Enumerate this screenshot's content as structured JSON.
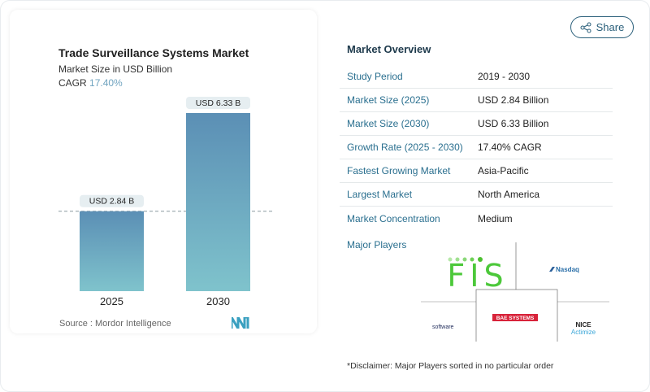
{
  "chart_data": {
    "type": "bar",
    "title": "Trade Surveillance Systems Market",
    "subtitle": "Market Size in USD Billion",
    "cagr_label": "CAGR",
    "cagr_value": "17.40%",
    "categories": [
      "2025",
      "2030"
    ],
    "values": [
      2.84,
      6.33
    ],
    "data_labels": [
      "USD 2.84 B",
      "USD 6.33 B"
    ],
    "ylim": [
      0,
      6.33
    ],
    "colors": {
      "top": "#5b8fb5",
      "bottom": "#7fc3cc"
    },
    "source": "Source :  Mordor Intelligence"
  },
  "share_label": "Share",
  "overview": {
    "title": "Market Overview",
    "rows": [
      {
        "label": "Study Period",
        "value": "2019 - 2030"
      },
      {
        "label": "Market Size (2025)",
        "value": "USD 2.84 Billion"
      },
      {
        "label": "Market Size (2030)",
        "value": "USD 6.33 Billion"
      },
      {
        "label": "Growth Rate (2025 - 2030)",
        "value": "17.40% CAGR"
      },
      {
        "label": "Fastest Growing Market",
        "value": "Asia-Pacific"
      },
      {
        "label": "Largest Market",
        "value": "North America"
      },
      {
        "label": "Market Concentration",
        "value": "Medium"
      }
    ],
    "major_players_label": "Major Players",
    "players": [
      "FIS",
      "Nasdaq",
      "software",
      "BAE SYSTEMS",
      "NICE Actimize"
    ],
    "disclaimer": "*Disclaimer: Major Players sorted in no particular order"
  }
}
